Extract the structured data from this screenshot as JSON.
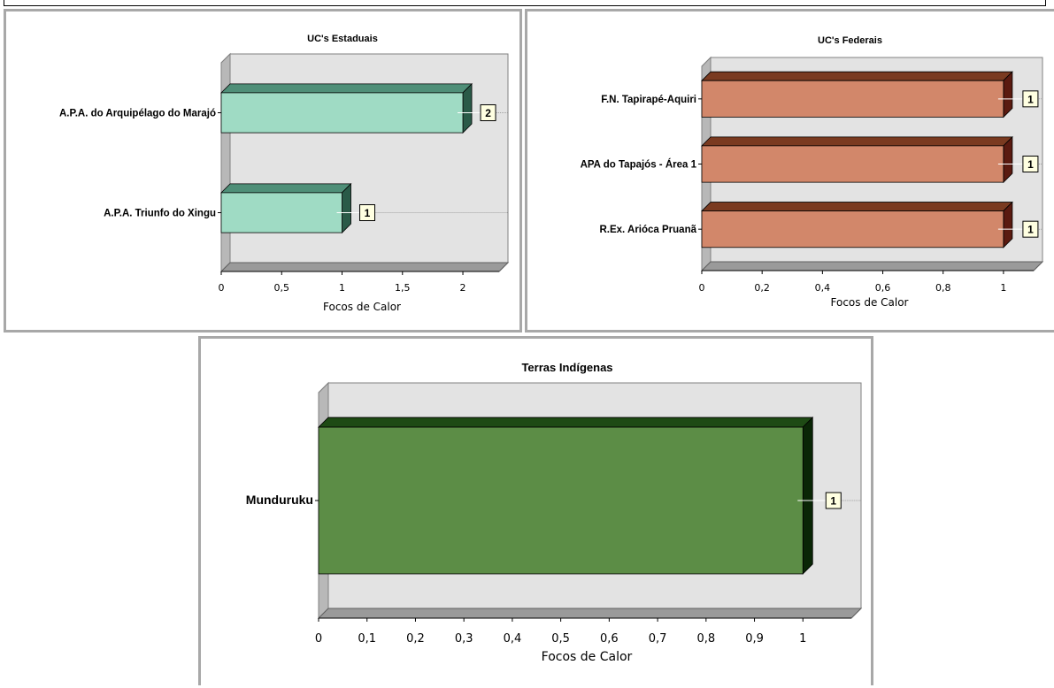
{
  "colors": {
    "plot_wall": "#e3e3e3",
    "plot_side": "#b8b8b8",
    "plot_floor": "#9a9a9a",
    "label_bg": "#ffffe1",
    "estaduais": {
      "front": "#9fdbc4",
      "top": "#4f8f78",
      "side": "#2a5a48"
    },
    "federais": {
      "front": "#d2876a",
      "top": "#7a3a20",
      "side": "#5a1a10"
    },
    "indigenas": {
      "front": "#5c8d46",
      "top": "#1e4a14",
      "side": "#0a2606"
    }
  },
  "chart_data": [
    {
      "id": "estaduais",
      "type": "bar",
      "orientation": "horizontal",
      "title": "UC's  Estaduais",
      "categories": [
        "A.P.A. do Arquipélago do Marajó",
        "A.P.A. Triunfo do Xingu"
      ],
      "values": [
        2,
        1
      ],
      "data_labels": [
        "2",
        "1"
      ],
      "xlabel": "Focos de Calor",
      "xlim": [
        0,
        2
      ],
      "xticks": [
        "0",
        "0,5",
        "1",
        "1,5",
        "2"
      ],
      "grid": false
    },
    {
      "id": "federais",
      "type": "bar",
      "orientation": "horizontal",
      "title": "UC's Federais",
      "categories": [
        "F.N. Tapirapé-Aquiri",
        "APA do Tapajós - Área 1",
        "R.Ex. Arióca Pruanã"
      ],
      "values": [
        1,
        1,
        1
      ],
      "data_labels": [
        "1",
        "1",
        "1"
      ],
      "xlabel": "Focos de Calor",
      "xlim": [
        0,
        1
      ],
      "xticks": [
        "0",
        "0,2",
        "0,4",
        "0,6",
        "0,8",
        "1"
      ],
      "grid": false
    },
    {
      "id": "indigenas",
      "type": "bar",
      "orientation": "horizontal",
      "title": "Terras Indígenas",
      "categories": [
        "Munduruku"
      ],
      "values": [
        1
      ],
      "data_labels": [
        "1"
      ],
      "xlabel": "Focos de Calor",
      "xlim": [
        0,
        1
      ],
      "xticks": [
        "0",
        "0,1",
        "0,2",
        "0,3",
        "0,4",
        "0,5",
        "0,6",
        "0,7",
        "0,8",
        "0,9",
        "1"
      ],
      "grid": false
    }
  ]
}
